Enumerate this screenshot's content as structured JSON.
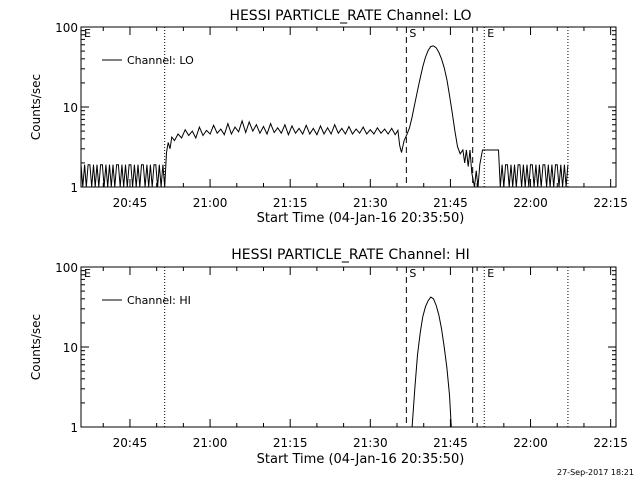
{
  "footer_timestamp": "27-Sep-2017 18:21",
  "chart_data": [
    {
      "type": "line",
      "title": "HESSI PARTICLE_RATE Channel: LO",
      "xlabel": "Start Time (04-Jan-16 20:35:50)",
      "ylabel": "Counts/sec",
      "yscale": "log",
      "ylim": [
        1,
        100
      ],
      "xlim": [
        "20:35:50",
        "22:16:00"
      ],
      "x_ticks": [
        "20:45",
        "21:00",
        "21:15",
        "21:30",
        "21:45",
        "22:00",
        "22:15"
      ],
      "y_ticks": [
        "1",
        "10",
        "100"
      ],
      "legend": "Channel: LO",
      "legend_position": "top-left",
      "markers": [
        {
          "label": "E",
          "time": "20:35:50",
          "style": "dotted"
        },
        {
          "label": "",
          "time": "20:51:30",
          "style": "dotted"
        },
        {
          "label": "S",
          "time": "21:36:45",
          "style": "dashed"
        },
        {
          "label": "",
          "time": "21:49:10",
          "style": "dashed"
        },
        {
          "label": "E",
          "time": "21:51:20",
          "style": "dotted"
        },
        {
          "label": "",
          "time": "22:07:00",
          "style": "dotted"
        }
      ],
      "series": [
        {
          "name": "Channel: LO",
          "points": [
            [
              "20:35:50",
              1.9
            ],
            [
              "20:36:10",
              1.0
            ],
            [
              "20:36:30",
              1.9
            ],
            [
              "20:36:50",
              1.0
            ],
            [
              "20:37:10",
              1.9
            ],
            [
              "20:37:30",
              1.9
            ],
            [
              "20:37:50",
              1.0
            ],
            [
              "20:38:10",
              1.9
            ],
            [
              "20:38:30",
              1.0
            ],
            [
              "20:38:50",
              1.9
            ],
            [
              "20:39:10",
              1.0
            ],
            [
              "20:39:30",
              1.9
            ],
            [
              "20:39:50",
              1.9
            ],
            [
              "20:40:10",
              1.0
            ],
            [
              "20:40:30",
              1.9
            ],
            [
              "20:40:50",
              1.0
            ],
            [
              "20:41:10",
              1.9
            ],
            [
              "20:41:30",
              1.0
            ],
            [
              "20:41:50",
              1.9
            ],
            [
              "20:42:10",
              1.0
            ],
            [
              "20:42:30",
              1.9
            ],
            [
              "20:42:50",
              1.9
            ],
            [
              "20:43:10",
              1.0
            ],
            [
              "20:43:30",
              1.9
            ],
            [
              "20:43:50",
              1.0
            ],
            [
              "20:44:10",
              1.9
            ],
            [
              "20:44:30",
              1.0
            ],
            [
              "20:44:50",
              1.9
            ],
            [
              "20:45:10",
              1.9
            ],
            [
              "20:45:30",
              1.0
            ],
            [
              "20:45:50",
              1.9
            ],
            [
              "20:46:10",
              1.0
            ],
            [
              "20:46:30",
              1.9
            ],
            [
              "20:46:50",
              1.0
            ],
            [
              "20:47:10",
              1.9
            ],
            [
              "20:47:30",
              1.9
            ],
            [
              "20:47:50",
              1.0
            ],
            [
              "20:48:10",
              1.9
            ],
            [
              "20:48:30",
              1.0
            ],
            [
              "20:48:50",
              1.9
            ],
            [
              "20:49:10",
              1.0
            ],
            [
              "20:49:30",
              1.9
            ],
            [
              "20:49:50",
              1.9
            ],
            [
              "20:50:10",
              1.0
            ],
            [
              "20:50:30",
              1.9
            ],
            [
              "20:50:50",
              1.0
            ],
            [
              "20:51:10",
              1.9
            ],
            [
              "20:51:30",
              1.0
            ],
            [
              "20:51:50",
              2.7
            ],
            [
              "20:52:10",
              3.6
            ],
            [
              "20:52:30",
              3.0
            ],
            [
              "20:52:50",
              4.2
            ],
            [
              "20:53:20",
              3.8
            ],
            [
              "20:54:00",
              4.6
            ],
            [
              "20:54:40",
              4.1
            ],
            [
              "20:55:20",
              5.2
            ],
            [
              "20:56:00",
              4.4
            ],
            [
              "20:56:40",
              5.0
            ],
            [
              "20:57:20",
              4.1
            ],
            [
              "20:58:00",
              5.6
            ],
            [
              "20:58:40",
              4.4
            ],
            [
              "20:59:20",
              5.1
            ],
            [
              "21:00:00",
              4.6
            ],
            [
              "21:00:40",
              5.9
            ],
            [
              "21:01:20",
              4.7
            ],
            [
              "21:02:00",
              5.3
            ],
            [
              "21:02:40",
              4.5
            ],
            [
              "21:03:20",
              6.2
            ],
            [
              "21:04:00",
              4.6
            ],
            [
              "21:04:40",
              5.6
            ],
            [
              "21:05:20",
              4.9
            ],
            [
              "21:06:00",
              6.7
            ],
            [
              "21:06:40",
              4.8
            ],
            [
              "21:07:20",
              6.5
            ],
            [
              "21:08:00",
              5.0
            ],
            [
              "21:08:40",
              6.0
            ],
            [
              "21:09:20",
              4.7
            ],
            [
              "21:10:00",
              5.7
            ],
            [
              "21:10:40",
              4.6
            ],
            [
              "21:11:20",
              6.2
            ],
            [
              "21:12:00",
              4.8
            ],
            [
              "21:12:40",
              5.5
            ],
            [
              "21:13:20",
              4.7
            ],
            [
              "21:14:00",
              6.0
            ],
            [
              "21:14:40",
              4.5
            ],
            [
              "21:15:20",
              5.8
            ],
            [
              "21:16:00",
              4.7
            ],
            [
              "21:16:40",
              5.4
            ],
            [
              "21:17:20",
              4.6
            ],
            [
              "21:18:00",
              5.9
            ],
            [
              "21:18:40",
              4.6
            ],
            [
              "21:19:20",
              5.4
            ],
            [
              "21:20:00",
              4.5
            ],
            [
              "21:20:40",
              5.8
            ],
            [
              "21:21:20",
              4.6
            ],
            [
              "21:22:00",
              5.5
            ],
            [
              "21:22:40",
              4.6
            ],
            [
              "21:23:20",
              6.0
            ],
            [
              "21:24:00",
              4.7
            ],
            [
              "21:24:40",
              5.4
            ],
            [
              "21:25:20",
              4.6
            ],
            [
              "21:26:00",
              5.7
            ],
            [
              "21:26:40",
              4.6
            ],
            [
              "21:27:20",
              5.3
            ],
            [
              "21:28:00",
              4.7
            ],
            [
              "21:28:40",
              5.6
            ],
            [
              "21:29:20",
              4.6
            ],
            [
              "21:30:00",
              5.2
            ],
            [
              "21:30:40",
              4.6
            ],
            [
              "21:31:20",
              5.5
            ],
            [
              "21:32:00",
              4.7
            ],
            [
              "21:32:40",
              5.3
            ],
            [
              "21:33:20",
              4.6
            ],
            [
              "21:34:00",
              5.4
            ],
            [
              "21:34:40",
              4.5
            ],
            [
              "21:35:10",
              5.1
            ],
            [
              "21:35:30",
              3.3
            ],
            [
              "21:35:50",
              2.7
            ],
            [
              "21:36:20",
              3.8
            ],
            [
              "21:36:50",
              4.5
            ],
            [
              "21:37:20",
              5.5
            ],
            [
              "21:37:50",
              7.5
            ],
            [
              "21:38:20",
              11
            ],
            [
              "21:38:50",
              16
            ],
            [
              "21:39:20",
              23
            ],
            [
              "21:39:50",
              32
            ],
            [
              "21:40:20",
              42
            ],
            [
              "21:40:50",
              51
            ],
            [
              "21:41:20",
              57
            ],
            [
              "21:41:50",
              58
            ],
            [
              "21:42:20",
              55
            ],
            [
              "21:42:50",
              48
            ],
            [
              "21:43:20",
              40
            ],
            [
              "21:43:50",
              31
            ],
            [
              "21:44:20",
              22
            ],
            [
              "21:44:50",
              14
            ],
            [
              "21:45:20",
              8.5
            ],
            [
              "21:45:50",
              5.0
            ],
            [
              "21:46:20",
              3.2
            ],
            [
              "21:46:50",
              2.6
            ],
            [
              "21:47:20",
              2.9
            ],
            [
              "21:47:40",
              2.0
            ],
            [
              "21:48:00",
              2.9
            ],
            [
              "21:48:20",
              1.8
            ],
            [
              "21:48:40",
              2.9
            ],
            [
              "21:49:00",
              1.5
            ],
            [
              "21:49:30",
              1.0
            ],
            [
              "21:49:50",
              1.6
            ],
            [
              "21:50:10",
              1.0
            ],
            [
              "21:50:30",
              1.9
            ],
            [
              "21:51:00",
              2.9
            ],
            [
              "21:53:00",
              2.9
            ],
            [
              "21:54:00",
              2.9
            ],
            [
              "21:54:20",
              1.0
            ],
            [
              "21:54:40",
              1.9
            ],
            [
              "21:55:00",
              1.0
            ],
            [
              "21:55:20",
              1.9
            ],
            [
              "21:55:40",
              1.9
            ],
            [
              "21:56:00",
              1.0
            ],
            [
              "21:56:20",
              1.9
            ],
            [
              "21:56:40",
              1.0
            ],
            [
              "21:57:00",
              1.9
            ],
            [
              "21:57:20",
              1.0
            ],
            [
              "21:57:40",
              1.9
            ],
            [
              "21:58:00",
              1.9
            ],
            [
              "21:58:20",
              1.0
            ],
            [
              "21:58:40",
              1.9
            ],
            [
              "21:59:00",
              1.0
            ],
            [
              "21:59:20",
              1.9
            ],
            [
              "21:59:40",
              1.0
            ],
            [
              "22:00:00",
              1.9
            ],
            [
              "22:00:20",
              1.9
            ],
            [
              "22:00:40",
              1.0
            ],
            [
              "22:01:00",
              1.9
            ],
            [
              "22:01:20",
              1.0
            ],
            [
              "22:01:40",
              1.9
            ],
            [
              "22:02:00",
              1.0
            ],
            [
              "22:02:20",
              1.9
            ],
            [
              "22:02:40",
              1.9
            ],
            [
              "22:03:00",
              1.0
            ],
            [
              "22:03:20",
              1.9
            ],
            [
              "22:03:40",
              1.0
            ],
            [
              "22:04:00",
              1.9
            ],
            [
              "22:04:20",
              1.0
            ],
            [
              "22:04:40",
              1.9
            ],
            [
              "22:05:00",
              1.9
            ],
            [
              "22:05:20",
              1.0
            ],
            [
              "22:05:40",
              1.9
            ],
            [
              "22:06:00",
              1.0
            ],
            [
              "22:06:20",
              1.9
            ],
            [
              "22:06:40",
              1.0
            ],
            [
              "22:07:00",
              1.9
            ]
          ]
        }
      ]
    },
    {
      "type": "line",
      "title": "HESSI PARTICLE_RATE Channel: HI",
      "xlabel": "Start Time (04-Jan-16 20:35:50)",
      "ylabel": "Counts/sec",
      "yscale": "log",
      "ylim": [
        1,
        100
      ],
      "xlim": [
        "20:35:50",
        "22:16:00"
      ],
      "x_ticks": [
        "20:45",
        "21:00",
        "21:15",
        "21:30",
        "21:45",
        "22:00",
        "22:15"
      ],
      "y_ticks": [
        "1",
        "10",
        "100"
      ],
      "legend": "Channel: HI",
      "legend_position": "top-left",
      "markers": [
        {
          "label": "E",
          "time": "20:35:50",
          "style": "dotted"
        },
        {
          "label": "",
          "time": "20:51:30",
          "style": "dotted"
        },
        {
          "label": "S",
          "time": "21:36:45",
          "style": "dashed"
        },
        {
          "label": "",
          "time": "21:49:10",
          "style": "dashed"
        },
        {
          "label": "E",
          "time": "21:51:20",
          "style": "dotted"
        },
        {
          "label": "",
          "time": "22:07:00",
          "style": "dotted"
        }
      ],
      "series": [
        {
          "name": "Channel: HI",
          "points": [
            [
              "21:37:50",
              1.0
            ],
            [
              "21:38:20",
              3.0
            ],
            [
              "21:38:50",
              8.0
            ],
            [
              "21:39:20",
              15
            ],
            [
              "21:39:50",
              24
            ],
            [
              "21:40:20",
              32
            ],
            [
              "21:40:50",
              38
            ],
            [
              "21:41:20",
              42
            ],
            [
              "21:41:50",
              40
            ],
            [
              "21:42:20",
              33
            ],
            [
              "21:42:50",
              25
            ],
            [
              "21:43:20",
              17
            ],
            [
              "21:43:50",
              10
            ],
            [
              "21:44:20",
              5.5
            ],
            [
              "21:44:50",
              2.5
            ],
            [
              "21:45:10",
              1.0
            ]
          ]
        }
      ]
    }
  ]
}
